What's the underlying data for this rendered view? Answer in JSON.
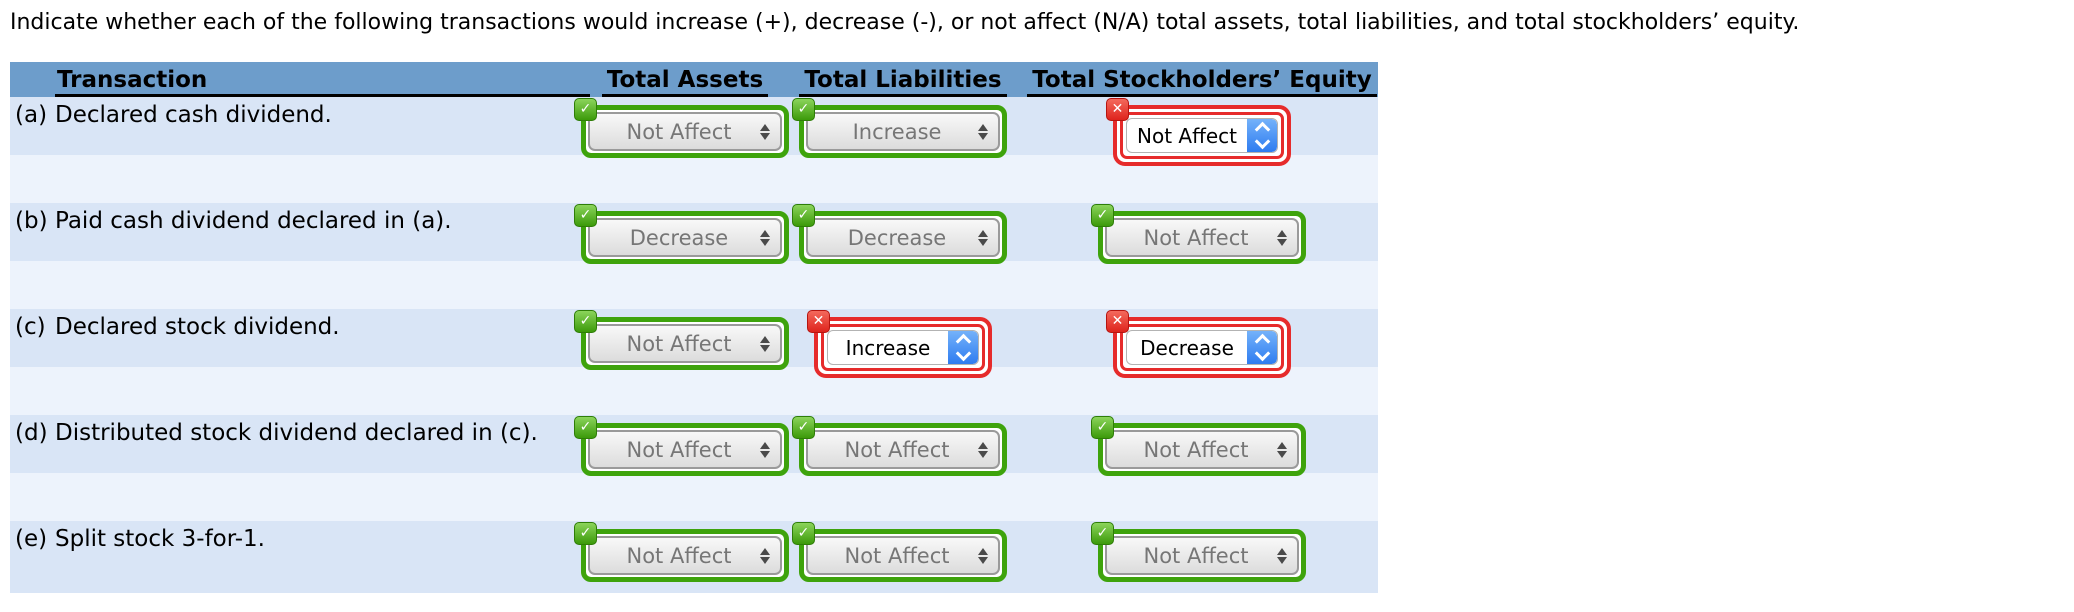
{
  "instructions": "Indicate whether each of the following transactions would increase (+), decrease (-), or not affect (N/A) total assets, total liabilities, and total stockholders’ equity.",
  "glyphs": {
    "check": "✓",
    "cross": "✕"
  },
  "colors": {
    "header_bg": "#6d9dcb",
    "row_band": "#d9e5f6",
    "row_gap": "#edf3fc",
    "correct_green": "#3ea30c",
    "incorrect_red": "#e62b2b",
    "active_select_blue": "#2e7cf0",
    "disabled_text": "#767676"
  },
  "table": {
    "headers": {
      "transaction": "Transaction",
      "assets": "Total Assets",
      "liabilities": "Total Liabilities",
      "equity": "Total Stockholders’ Equity"
    },
    "rows": [
      {
        "letter": "(a)",
        "label": "Declared cash dividend.",
        "assets": {
          "value": "Not Affect",
          "status": "correct"
        },
        "liabilities": {
          "value": "Increase",
          "status": "correct"
        },
        "equity": {
          "value": "Not Affect",
          "status": "incorrect"
        }
      },
      {
        "letter": "(b)",
        "label": "Paid cash dividend declared in (a).",
        "assets": {
          "value": "Decrease",
          "status": "correct"
        },
        "liabilities": {
          "value": "Decrease",
          "status": "correct"
        },
        "equity": {
          "value": "Not Affect",
          "status": "correct"
        }
      },
      {
        "letter": "(c)",
        "label": "Declared stock dividend.",
        "assets": {
          "value": "Not Affect",
          "status": "correct"
        },
        "liabilities": {
          "value": "Increase",
          "status": "incorrect"
        },
        "equity": {
          "value": "Decrease",
          "status": "incorrect"
        }
      },
      {
        "letter": "(d)",
        "label": "Distributed stock dividend declared in (c).",
        "assets": {
          "value": "Not Affect",
          "status": "correct"
        },
        "liabilities": {
          "value": "Not Affect",
          "status": "correct"
        },
        "equity": {
          "value": "Not Affect",
          "status": "correct"
        }
      },
      {
        "letter": "(e)",
        "label": "Split stock 3-for-1.",
        "assets": {
          "value": "Not Affect",
          "status": "correct"
        },
        "liabilities": {
          "value": "Not Affect",
          "status": "correct"
        },
        "equity": {
          "value": "Not Affect",
          "status": "correct"
        }
      }
    ]
  }
}
